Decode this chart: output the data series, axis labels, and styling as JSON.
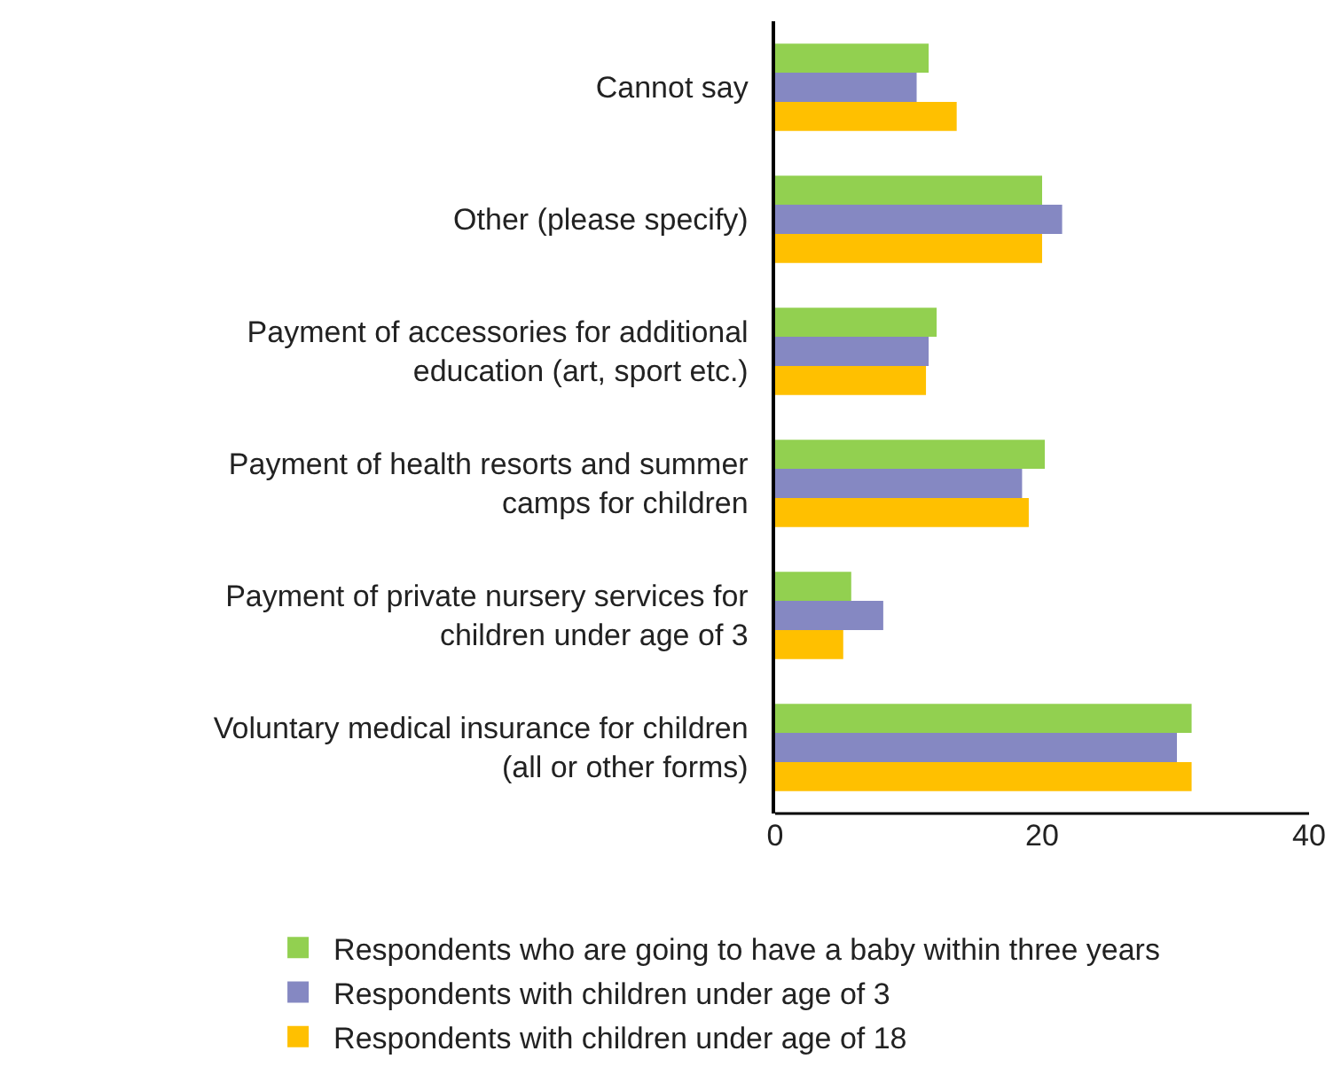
{
  "chart_data": {
    "type": "bar",
    "orientation": "horizontal",
    "categories": [
      "Cannot say",
      "Other (please specify)",
      "Payment of accessories for additional education (art, sport etc.)",
      "Payment of health resorts and summer camps for children",
      "Payment of private nursery services for children under age of 3",
      "Voluntary medical insurance for children (all or other forms)"
    ],
    "series": [
      {
        "name": "Respondents who are going to have a baby within three years",
        "color": "#92d050",
        "values": [
          11.5,
          20.0,
          12.1,
          20.2,
          5.7,
          31.2
        ]
      },
      {
        "name": "Respondents with children under age of 3",
        "color": "#8588c2",
        "values": [
          10.6,
          21.5,
          11.5,
          18.5,
          8.1,
          30.1
        ]
      },
      {
        "name": "Respondents with children under age of 18",
        "color": "#ffc000",
        "values": [
          13.6,
          20.0,
          11.3,
          19.0,
          5.1,
          31.2
        ]
      }
    ],
    "xlim": [
      0,
      40
    ],
    "xticks": [
      0,
      20,
      40
    ],
    "grid": false,
    "legend": "bottom"
  }
}
